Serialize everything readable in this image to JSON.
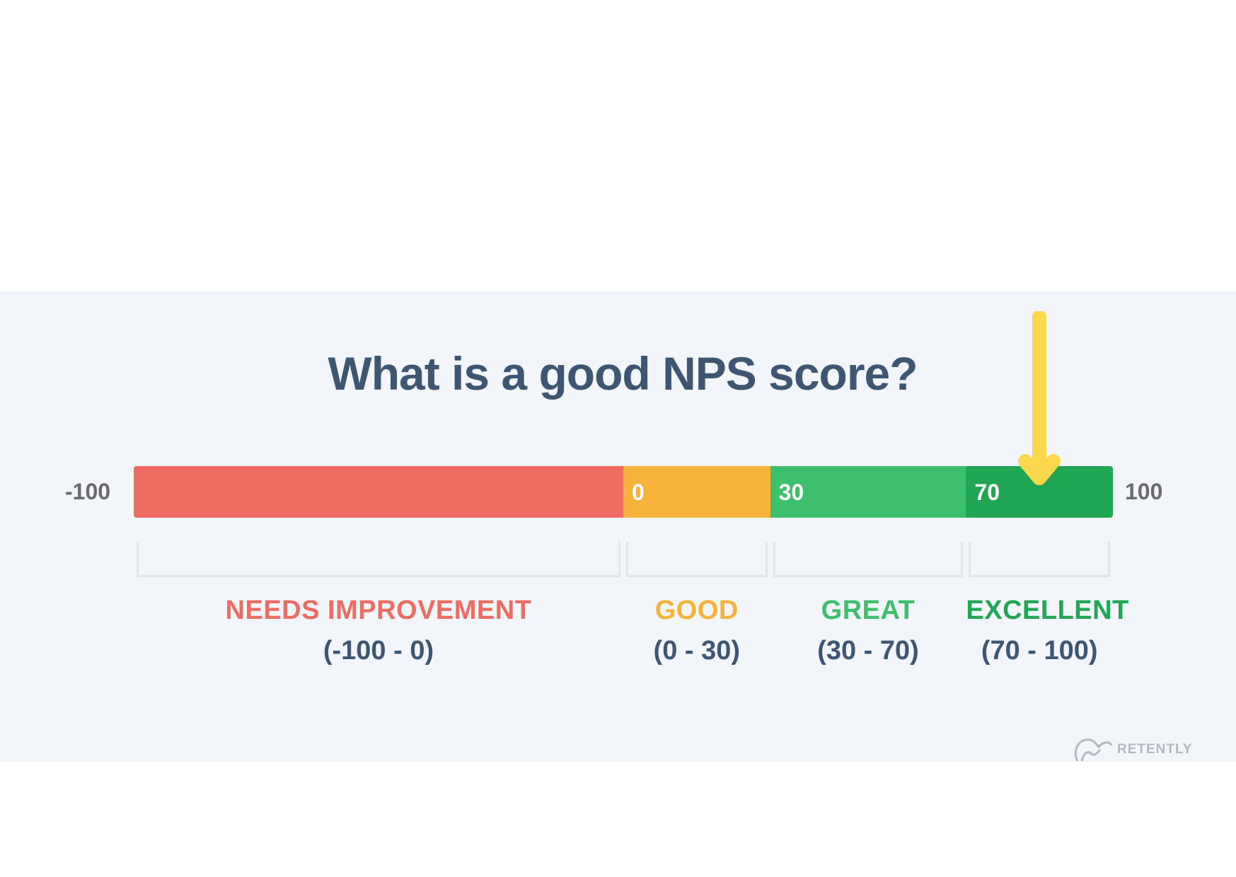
{
  "title": "What is a good NPS score?",
  "scale": {
    "min_label": "-100",
    "max_label": "100",
    "min": -100,
    "max": 100
  },
  "segments": [
    {
      "start": -100,
      "end": 0,
      "boundary_label": "",
      "color": "#ef6c63",
      "name": "NEEDS IMPROVEMENT",
      "range": "(-100 - 0)"
    },
    {
      "start": 0,
      "end": 30,
      "boundary_label": "0",
      "color": "#f6b33c",
      "name": "GOOD",
      "range": "(0 - 30)"
    },
    {
      "start": 30,
      "end": 70,
      "boundary_label": "30",
      "color": "#3cc06c",
      "name": "GREAT",
      "range": "(30 - 70)"
    },
    {
      "start": 70,
      "end": 100,
      "boundary_label": "70",
      "color": "#21a653",
      "name": "EXCELLENT",
      "range": "(70 - 100)"
    }
  ],
  "marker": {
    "value": 85,
    "color": "#fcd84c",
    "icon": "arrow-down-icon"
  },
  "logo": {
    "text": "RETENTLY",
    "icon": "retently-logo-icon"
  }
}
